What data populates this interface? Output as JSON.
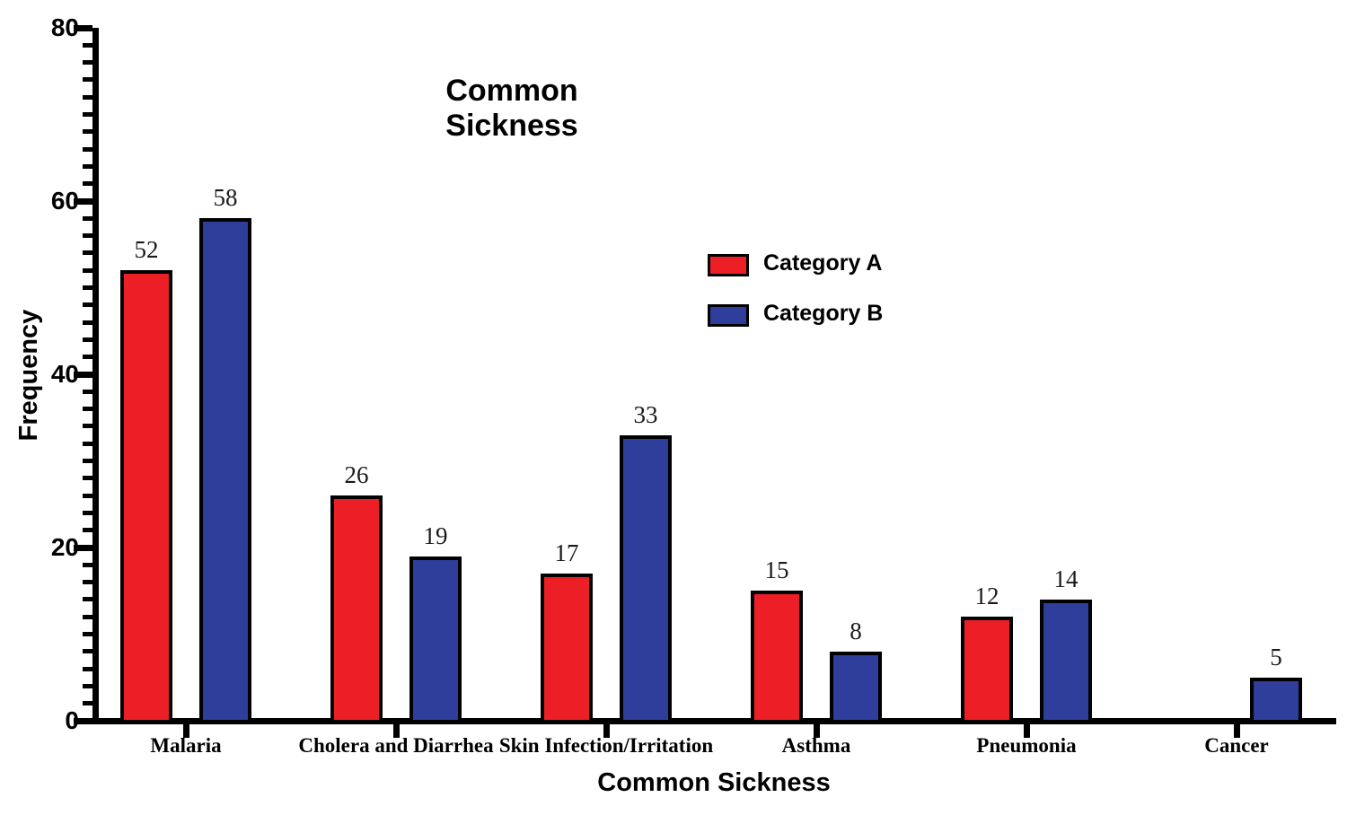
{
  "chart_data": {
    "type": "bar",
    "title": "Common Sickness",
    "xlabel": "Common Sickness",
    "ylabel": "Frequency",
    "ylim": [
      0,
      80
    ],
    "yticks": [
      0,
      20,
      40,
      60,
      80
    ],
    "minor_tick_step": 2,
    "grid": false,
    "bar_value_labels": true,
    "legend_position": "inside-upper-right",
    "categories": [
      "Malaria",
      "Cholera and Diarrhea",
      "Skin Infection/Irritation",
      "Asthma",
      "Pneumonia",
      "Cancer"
    ],
    "series": [
      {
        "name": "Category A",
        "color": "#ED1F26",
        "values": [
          52,
          26,
          17,
          15,
          12,
          null
        ]
      },
      {
        "name": "Category B",
        "color": "#2F3E9B",
        "values": [
          58,
          19,
          33,
          8,
          14,
          5
        ]
      }
    ]
  },
  "colors": {
    "background": "#FFFFFF",
    "axis": "#000000",
    "bar_border": "#000000",
    "category_a": "#ED1F26",
    "category_b": "#2F3E9B"
  }
}
